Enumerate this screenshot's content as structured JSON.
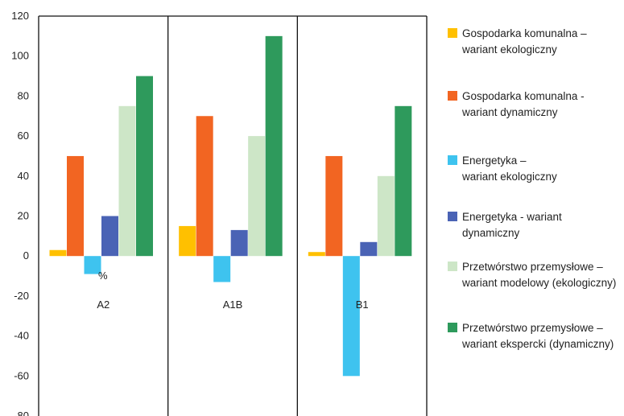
{
  "chart_data": {
    "type": "bar",
    "categories": [
      "A2",
      "A1B",
      "B1"
    ],
    "unit_label": "%",
    "ylim": [
      -80,
      120
    ],
    "yticks": [
      120,
      100,
      80,
      60,
      40,
      20,
      0,
      -20,
      -40,
      -60,
      -80
    ],
    "grid": "vertical separators between groups",
    "legend_position": "right",
    "series": [
      {
        "name": [
          "Gospodarka komunalna –",
          "wariant ekologiczny"
        ],
        "color": "#FFC000",
        "values": [
          3,
          15,
          2
        ]
      },
      {
        "name": [
          "Gospodarka komunalna -",
          "wariant dynamiczny"
        ],
        "color": "#F26522",
        "values": [
          50,
          70,
          50
        ]
      },
      {
        "name": [
          "Energetyka –",
          "wariant ekologiczny"
        ],
        "color": "#3EC3EF",
        "values": [
          -9,
          -13,
          -60
        ]
      },
      {
        "name": [
          "Energetyka - wariant dynamiczny"
        ],
        "color": "#4A63B5",
        "values": [
          20,
          13,
          7
        ]
      },
      {
        "name": [
          "Przetwórstwo przemysłowe –",
          "wariant modelowy (ekologiczny)"
        ],
        "color": "#CDE6C7",
        "values": [
          75,
          60,
          40
        ]
      },
      {
        "name": [
          "Przetwórstwo przemysłowe –",
          "wariant ekspercki (dynamiczny)"
        ],
        "color": "#2E9A5C",
        "values": [
          90,
          110,
          75
        ]
      }
    ]
  }
}
